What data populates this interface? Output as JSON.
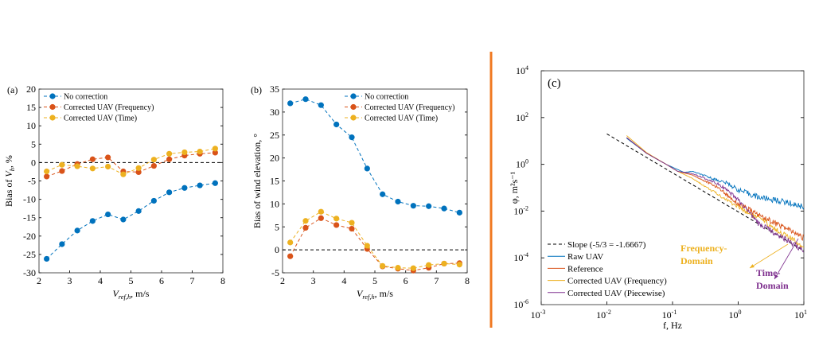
{
  "chart_data": [
    {
      "type": "line",
      "panel_label": "(a)",
      "xlabel": "V_ref,h, m/s",
      "ylabel": "Bias of V_h, %",
      "xlim": [
        2,
        8
      ],
      "ylim": [
        -30,
        20
      ],
      "xticks": [
        2,
        3,
        4,
        5,
        6,
        7,
        8
      ],
      "yticks": [
        -30,
        -25,
        -20,
        -15,
        -10,
        -5,
        0,
        5,
        10,
        15,
        20
      ],
      "legend_position": "top-left",
      "reference_line": 0,
      "x": [
        2.25,
        2.75,
        3.25,
        3.75,
        4.25,
        4.75,
        5.25,
        5.75,
        6.25,
        6.75,
        7.25,
        7.75
      ],
      "series": [
        {
          "name": "No correction",
          "color": "#0072BD",
          "values": [
            -26.2,
            -22.2,
            -18.5,
            -15.9,
            -14.1,
            -15.5,
            -13.2,
            -10.4,
            -8.1,
            -6.9,
            -6.2,
            -5.6
          ]
        },
        {
          "name": "Corrected UAV (Frequency)",
          "color": "#D95319",
          "values": [
            -3.8,
            -2.3,
            -0.4,
            0.9,
            1.4,
            -2.4,
            -2.6,
            -0.9,
            0.9,
            1.9,
            2.4,
            2.7
          ]
        },
        {
          "name": "Corrected UAV (Time)",
          "color": "#EDB120",
          "values": [
            -2.4,
            -0.6,
            -1.0,
            -1.6,
            -1.1,
            -3.2,
            -1.5,
            0.8,
            2.4,
            2.8,
            3.0,
            3.8
          ]
        }
      ]
    },
    {
      "type": "line",
      "panel_label": "(b)",
      "xlabel": "V_ref,h, m/s",
      "ylabel": "Bias of wind elevation, °",
      "xlim": [
        2,
        8
      ],
      "ylim": [
        -5,
        35
      ],
      "xticks": [
        2,
        3,
        4,
        5,
        6,
        7,
        8
      ],
      "yticks": [
        -5,
        0,
        5,
        10,
        15,
        20,
        25,
        30,
        35
      ],
      "legend_position": "top-right",
      "reference_line": 0,
      "x": [
        2.25,
        2.75,
        3.25,
        3.75,
        4.25,
        4.75,
        5.25,
        5.75,
        6.25,
        6.75,
        7.25,
        7.75
      ],
      "series": [
        {
          "name": "No correction",
          "color": "#0072BD",
          "values": [
            31.9,
            32.8,
            31.5,
            27.3,
            24.5,
            17.7,
            12.1,
            10.5,
            9.6,
            9.5,
            9.0,
            8.1
          ]
        },
        {
          "name": "Corrected UAV (Frequency)",
          "color": "#D95319",
          "values": [
            -1.4,
            4.8,
            6.9,
            5.4,
            4.6,
            0.2,
            -3.6,
            -4.1,
            -4.5,
            -3.9,
            -3.0,
            -2.9
          ]
        },
        {
          "name": "Corrected UAV (Time)",
          "color": "#EDB120",
          "values": [
            1.6,
            6.3,
            8.3,
            6.8,
            5.9,
            0.9,
            -3.5,
            -3.9,
            -4.0,
            -3.3,
            -3.0,
            -3.2
          ]
        }
      ]
    },
    {
      "type": "line",
      "panel_label": "(c)",
      "xlabel": "f, Hz",
      "ylabel": "φ, m²s⁻¹",
      "xscale": "log",
      "yscale": "log",
      "xlim": [
        0.001,
        10
      ],
      "ylim": [
        1e-06,
        10000
      ],
      "xtick_exponents": [
        -3,
        -2,
        -1,
        0,
        1
      ],
      "ytick_exponents": [
        -6,
        -4,
        -2,
        0,
        2,
        4
      ],
      "legend_position": "bottom-left",
      "series": [
        {
          "name": "Slope (-5/3 = -1.6667)",
          "color": "#000000",
          "dashed": true,
          "f": [
            0.01,
            10
          ],
          "values": [
            20,
            0.0002
          ]
        },
        {
          "name": "Raw UAV",
          "color": "#0072BD",
          "f": [
            0.02,
            0.04,
            0.08,
            0.15,
            0.2,
            0.4,
            0.7,
            1,
            2,
            5,
            10
          ],
          "values": [
            13,
            3,
            1,
            0.45,
            0.5,
            0.25,
            0.15,
            0.08,
            0.04,
            0.025,
            0.015
          ]
        },
        {
          "name": "Reference",
          "color": "#D95319",
          "f": [
            0.02,
            0.04,
            0.08,
            0.12,
            0.2,
            0.5,
            1,
            2,
            5,
            10
          ],
          "values": [
            14,
            3,
            1,
            0.5,
            0.35,
            0.1,
            0.02,
            0.007,
            0.002,
            0.0007
          ]
        },
        {
          "name": "Corrected UAV (Frequency)",
          "color": "#EDB120",
          "f": [
            0.02,
            0.04,
            0.08,
            0.12,
            0.2,
            0.5,
            1,
            2,
            5,
            10
          ],
          "values": [
            17,
            3.2,
            1,
            0.5,
            0.25,
            0.05,
            0.015,
            0.005,
            0.001,
            0.0003
          ]
        },
        {
          "name": "Corrected UAV (Piecewise)",
          "color": "#7E2F8E",
          "f": [
            0.02,
            0.04,
            0.08,
            0.12,
            0.2,
            0.5,
            1,
            2,
            5,
            10
          ],
          "values": [
            14,
            3,
            1,
            0.5,
            0.4,
            0.15,
            0.03,
            0.003,
            0.0007,
            0.0002
          ]
        }
      ],
      "annotations": [
        {
          "text_lines": [
            "Frequency-",
            "Domain"
          ],
          "color": "#EDB120"
        },
        {
          "text_lines": [
            "Time-",
            "Domain"
          ],
          "color": "#7E2F8E"
        }
      ]
    }
  ],
  "divider_color": "#F07820"
}
